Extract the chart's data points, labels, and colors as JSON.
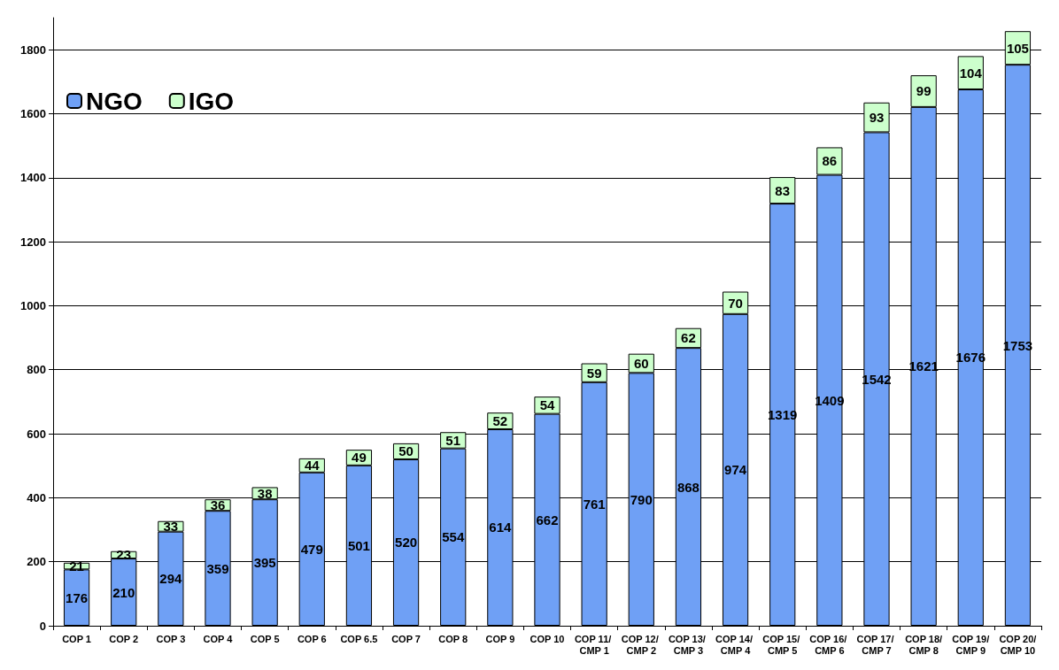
{
  "chart_data": {
    "type": "bar",
    "stacked": true,
    "data_labels": true,
    "grid": "y",
    "legend": "top left",
    "categories": [
      "COP 1",
      "COP 2",
      "COP 3",
      "COP 4",
      "COP 5",
      "COP 6",
      "COP 6.5",
      "COP 7",
      "COP 8",
      "COP 9",
      "COP 10",
      "COP 11/ CMP 1",
      "COP 12/ CMP 2",
      "COP 13/ CMP 3",
      "COP 14/ CMP 4",
      "COP 15/ CMP 5",
      "COP 16/ CMP 6",
      "COP 17/ CMP 7",
      "COP 18/CMP 8",
      "COP 19/CMP 9",
      "COP 20/CMP 10"
    ],
    "series": [
      {
        "name": "NGO",
        "color": "#6fa0f5",
        "values": [
          176,
          210,
          294,
          359,
          395,
          479,
          501,
          520,
          554,
          614,
          662,
          761,
          790,
          868,
          974,
          1319,
          1409,
          1542,
          1621,
          1676,
          1753
        ]
      },
      {
        "name": "IGO",
        "color": "#ccffcc",
        "values": [
          21,
          23,
          33,
          36,
          38,
          44,
          49,
          50,
          51,
          52,
          54,
          59,
          60,
          62,
          70,
          83,
          86,
          93,
          99,
          104,
          105
        ]
      }
    ],
    "ylim": [
      0,
      1900
    ],
    "yticks": [
      0,
      200,
      400,
      600,
      800,
      1000,
      1200,
      1400,
      1600,
      1800
    ]
  }
}
